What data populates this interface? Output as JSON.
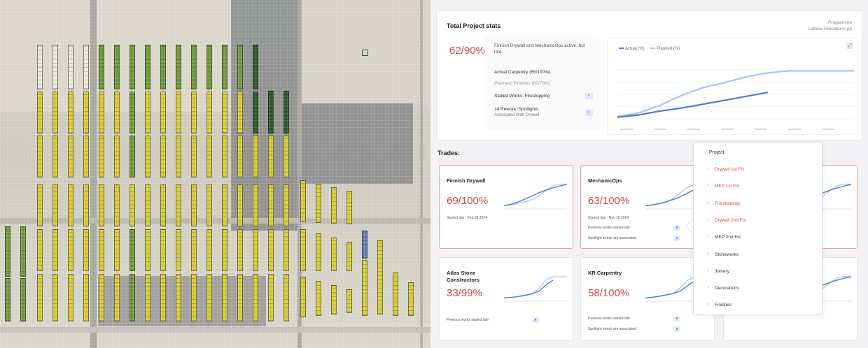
{
  "stats": {
    "title": "Total Project  stats",
    "right_line1": "Programme",
    "right_line2": "Labour Allocations.pp",
    "percent": "62/90%",
    "description": "Finnish Drywall and MechanicOps active, but late",
    "actual": "Actual Carpentry (65/100%)",
    "planned": "Planned: Finishes (65/75%)",
    "stalled": "Stalled Works: Firestopping",
    "rework": "14 Rework :Spotlights",
    "rework_sub": "Associated With Drywall",
    "legend_actual": "Actual (%)",
    "legend_planned": "Planned (%)",
    "colors": {
      "actual": "#4f79cf",
      "planned": "#a9c4f0",
      "late": "#d14848"
    }
  },
  "trades": {
    "title": "Trades:",
    "cards": [
      {
        "name": "Finnish Drywall",
        "percent": "69/100%",
        "started": "Started late : Feb 08 2024"
      },
      {
        "name": "MechanicOps",
        "percent": "63/100%",
        "started": "Started late : Nov 16 2024",
        "note1": "Previous works started late",
        "note2": "Spotlight trends are associated"
      },
      {
        "name": "Atlas Stone Constructors",
        "percent": "33/99%",
        "note1": "Previous works started late"
      },
      {
        "name": "KR Carpentry",
        "percent": "58/100%",
        "note1": "Previous works started late",
        "note2": "Spotlight trends are associated"
      }
    ]
  },
  "dropdown": {
    "header": "Project",
    "items": [
      {
        "label": "Drywall 1st Fix",
        "late": true
      },
      {
        "label": "MEP 1st Fix",
        "late": true
      },
      {
        "label": "Firestopping",
        "late": true
      },
      {
        "label": "Drywall 2nd Fix",
        "late": true
      },
      {
        "label": "MEP 2nd Fix",
        "late": false
      },
      {
        "label": "Stoneworks",
        "late": false
      },
      {
        "label": "Joinery",
        "late": false
      },
      {
        "label": "Decorations",
        "late": false
      },
      {
        "label": "Finishes",
        "late": false
      }
    ]
  },
  "chart_data": [
    {
      "type": "line",
      "series": [
        {
          "name": "Planned (%)",
          "y": [
            5,
            12,
            28,
            48,
            64,
            74,
            86,
            94,
            98,
            98,
            98,
            98
          ]
        },
        {
          "name": "Actual (%)",
          "y": [
            3,
            8,
            16,
            22,
            30,
            38,
            46,
            54
          ]
        }
      ],
      "ylim": [
        0,
        100
      ]
    },
    {
      "type": "line",
      "series": [
        {
          "y": [
            2,
            8,
            18,
            32,
            46,
            60,
            72,
            82,
            90,
            97
          ]
        },
        {
          "y": [
            2,
            6,
            12,
            20,
            30,
            46,
            70,
            92,
            98,
            98
          ]
        }
      ]
    },
    {
      "type": "line",
      "series": [
        {
          "y": [
            2,
            6,
            12,
            20,
            30,
            42,
            58,
            74
          ]
        },
        {
          "y": [
            2,
            5,
            10,
            18,
            34,
            60,
            84,
            96,
            98,
            98
          ]
        }
      ]
    },
    {
      "type": "line",
      "series": [
        {
          "y": [
            2,
            4,
            8,
            14,
            20,
            32,
            60,
            82
          ]
        },
        {
          "y": [
            2,
            4,
            8,
            12,
            20,
            44,
            84,
            96,
            96,
            96
          ]
        }
      ]
    },
    {
      "type": "line",
      "series": [
        {
          "y": [
            2,
            5,
            10,
            16,
            22,
            34,
            56,
            78
          ]
        },
        {
          "y": [
            2,
            4,
            8,
            14,
            24,
            48,
            80,
            96,
            98,
            98
          ]
        }
      ]
    }
  ]
}
